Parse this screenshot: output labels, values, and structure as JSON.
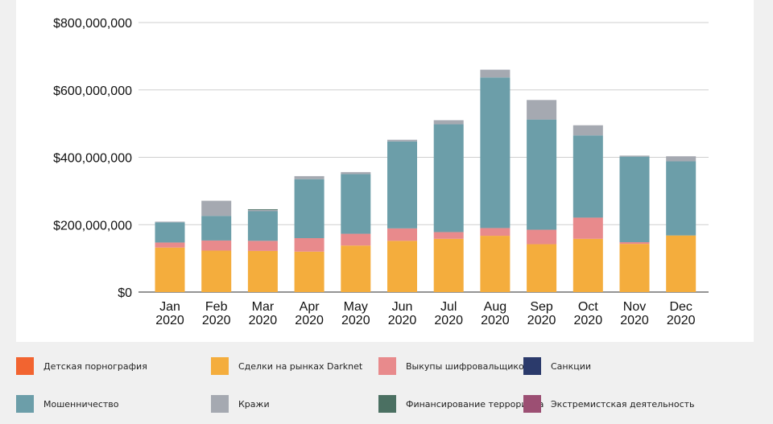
{
  "chart_data": {
    "type": "bar",
    "stacked": true,
    "categories": [
      [
        "Jan",
        "2020"
      ],
      [
        "Feb",
        "2020"
      ],
      [
        "Mar",
        "2020"
      ],
      [
        "Apr",
        "2020"
      ],
      [
        "May",
        "2020"
      ],
      [
        "Jun",
        "2020"
      ],
      [
        "Jul",
        "2020"
      ],
      [
        "Aug",
        "2020"
      ],
      [
        "Sep",
        "2020"
      ],
      [
        "Oct",
        "2020"
      ],
      [
        "Nov",
        "2020"
      ],
      [
        "Dec",
        "2020"
      ]
    ],
    "ylim": [
      0,
      800000000
    ],
    "yticks": [
      0,
      200000000,
      400000000,
      600000000,
      800000000
    ],
    "ytick_labels": [
      "$0",
      "$200,000,000",
      "$400,000,000",
      "$600,000,000",
      "$800,000,000"
    ],
    "grid": true,
    "legend_position": "bottom",
    "series": [
      {
        "name": "Детская порнография",
        "color": "#f26430",
        "values": [
          0,
          0,
          0,
          0,
          0,
          0,
          0,
          0,
          0,
          0,
          0,
          0
        ]
      },
      {
        "name": "Сделки на рынках Darknet",
        "color": "#f4ad3d",
        "values": [
          132000000,
          123000000,
          122000000,
          120000000,
          138000000,
          152000000,
          158000000,
          167000000,
          142000000,
          158000000,
          143000000,
          168000000
        ]
      },
      {
        "name": "Выкупы шифровальщиков",
        "color": "#e88a8c",
        "values": [
          15000000,
          30000000,
          30000000,
          40000000,
          35000000,
          37000000,
          20000000,
          23000000,
          43000000,
          63000000,
          5000000,
          0
        ]
      },
      {
        "name": "Санкции",
        "color": "#2b3a6b",
        "values": [
          0,
          0,
          0,
          0,
          0,
          0,
          0,
          0,
          0,
          0,
          0,
          0
        ]
      },
      {
        "name": "Мошенничество",
        "color": "#6c9ea9",
        "values": [
          60000000,
          73000000,
          88000000,
          175000000,
          177000000,
          258000000,
          320000000,
          447000000,
          327000000,
          244000000,
          254000000,
          220000000
        ]
      },
      {
        "name": "Кражи",
        "color": "#a5a9b1",
        "values": [
          2000000,
          45000000,
          4000000,
          9000000,
          6000000,
          5000000,
          12000000,
          23000000,
          58000000,
          30000000,
          3000000,
          15000000
        ]
      },
      {
        "name": "Финансирование терроризма",
        "color": "#4b7062",
        "values": [
          0,
          0,
          2000000,
          0,
          0,
          0,
          0,
          0,
          0,
          0,
          0,
          0
        ]
      },
      {
        "name": "Экстремистская деятельность",
        "color": "#9c4f73",
        "values": [
          0,
          0,
          0,
          0,
          0,
          0,
          0,
          0,
          0,
          0,
          0,
          0
        ]
      }
    ]
  }
}
